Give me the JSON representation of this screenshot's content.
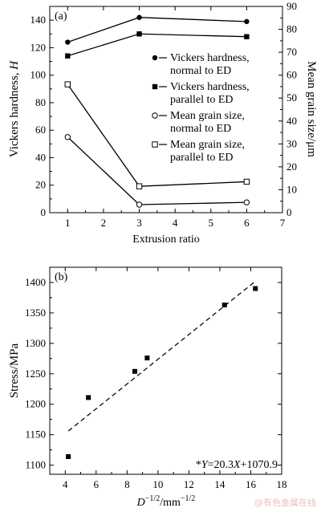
{
  "chart_data": [
    {
      "type": "line",
      "panel_label": "(a)",
      "xlabel": "Extrusion ratio",
      "ylabel_left": "Vickers hardness, H",
      "ylabel_right": "Mean grain size/μm",
      "xlim": [
        0.5,
        7
      ],
      "ylim_left": [
        0,
        150
      ],
      "ylim_right": [
        0,
        90
      ],
      "x_ticks": [
        1,
        2,
        3,
        4,
        5,
        6,
        7
      ],
      "y_ticks_left": [
        0,
        20,
        40,
        60,
        80,
        100,
        120,
        140
      ],
      "y_ticks_right": [
        0,
        10,
        20,
        30,
        40,
        50,
        60,
        70,
        80,
        90
      ],
      "legend_position": "right",
      "series": [
        {
          "name": "Vickers hardness, normal to ED",
          "name_lines": [
            "Vickers hardness,",
            "normal to ED"
          ],
          "axis": "left",
          "marker": "filled-circle",
          "x": [
            1,
            3,
            6
          ],
          "y": [
            124,
            142,
            139
          ]
        },
        {
          "name": "Vickers hardness, parallel to ED",
          "name_lines": [
            "Vickers hardness,",
            "parallel to ED"
          ],
          "axis": "left",
          "marker": "filled-square",
          "x": [
            1,
            3,
            6
          ],
          "y": [
            114,
            130,
            128
          ]
        },
        {
          "name": "Mean grain size, normal to ED",
          "name_lines": [
            "Mean grain size,",
            "normal to ED"
          ],
          "axis": "right",
          "marker": "open-circle",
          "x": [
            1,
            3,
            6
          ],
          "y": [
            33,
            3.5,
            4.5
          ]
        },
        {
          "name": "Mean grain size, parallel to ED",
          "name_lines": [
            "Mean grain size,",
            "parallel to ED"
          ],
          "axis": "right",
          "marker": "open-square",
          "x": [
            1,
            3,
            6
          ],
          "y": [
            56,
            11.5,
            13.5
          ]
        }
      ]
    },
    {
      "type": "scatter",
      "panel_label": "(b)",
      "xlabel_base": "D",
      "xlabel_sup": "−1/2",
      "xlabel_mid": "/mm",
      "xlabel_sup2": "−1/2",
      "ylabel": "Stress/MPa",
      "xlim": [
        3,
        18
      ],
      "ylim": [
        1085,
        1425
      ],
      "x_ticks": [
        4,
        6,
        8,
        10,
        12,
        14,
        16,
        18
      ],
      "y_ticks": [
        1100,
        1150,
        1200,
        1250,
        1300,
        1350,
        1400
      ],
      "points": {
        "x": [
          4.2,
          5.5,
          8.5,
          9.3,
          14.3,
          16.3
        ],
        "y": [
          1114,
          1211,
          1254,
          1276,
          1363,
          1390
        ]
      },
      "fit_line": {
        "x": [
          4.2,
          16.3
        ],
        "y": [
          1156,
          1402
        ],
        "style": "dashed"
      },
      "equation": {
        "prefix": "*",
        "lhs": "Y",
        "rhs": "=20.3",
        "var": "X",
        "rest": "+1070.9"
      }
    }
  ],
  "watermark": "@有色金属在线"
}
